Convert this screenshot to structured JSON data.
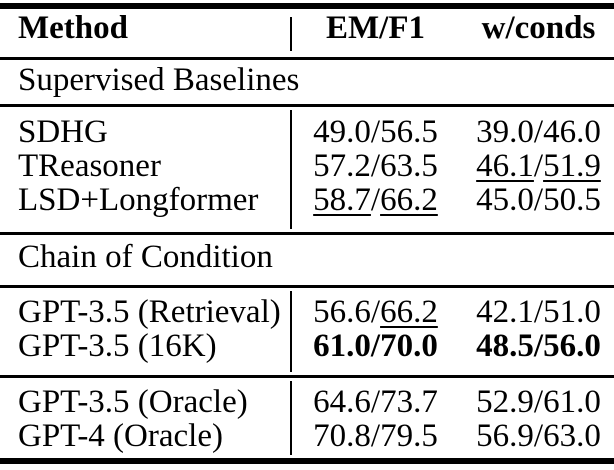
{
  "colors": {
    "text": "#000000",
    "background": "#ffffff",
    "rule": "#000000"
  },
  "table": {
    "sep": "/",
    "header": {
      "method": "Method",
      "em_f1": "EM/F1",
      "wconds": "w/conds"
    },
    "sections": [
      {
        "label": "Supervised Baselines",
        "rows": [
          {
            "method": "SDHG",
            "em": "49.0",
            "f1": "56.5",
            "cem": "39.0",
            "cf1": "46.0"
          },
          {
            "method": "TReasoner",
            "em": "57.2",
            "f1": "63.5",
            "cem": "46.1",
            "cf1": "51.9"
          },
          {
            "method": "LSD+Longformer",
            "em": "58.7",
            "f1": "66.2",
            "cem": "45.0",
            "cf1": "50.5"
          }
        ]
      },
      {
        "label": "Chain of Condition",
        "rows": [
          {
            "method": "GPT-3.5 (Retrieval)",
            "em": "56.6",
            "f1": "66.2",
            "cem": "42.1",
            "cf1": "51.0"
          },
          {
            "method": "GPT-3.5 (16K)",
            "em": "61.0",
            "f1": "70.0",
            "cem": "48.5",
            "cf1": "56.0"
          }
        ]
      },
      {
        "label": "",
        "rows": [
          {
            "method": "GPT-3.5 (Oracle)",
            "em": "64.6",
            "f1": "73.7",
            "cem": "52.9",
            "cf1": "61.0"
          },
          {
            "method": "GPT-4 (Oracle)",
            "em": "70.8",
            "f1": "79.5",
            "cem": "56.9",
            "cf1": "63.0"
          }
        ]
      }
    ]
  }
}
